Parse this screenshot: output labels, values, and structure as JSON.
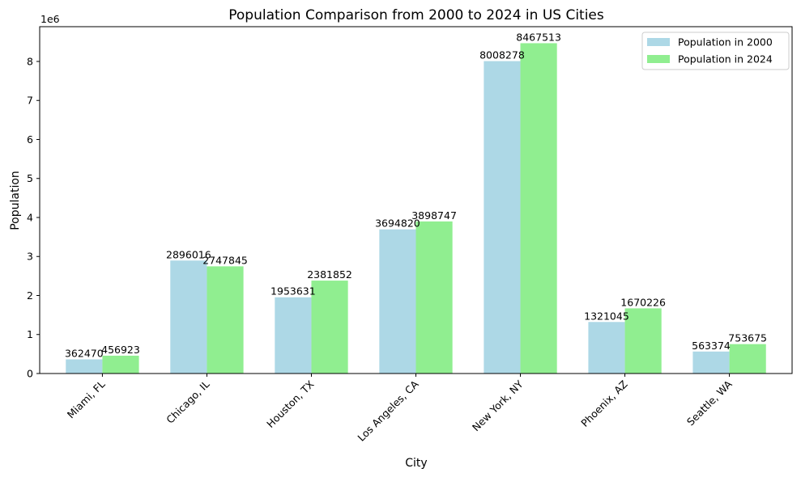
{
  "chart_data": {
    "type": "bar",
    "title": "Population Comparison from 2000 to 2024 in US Cities",
    "xlabel": "City",
    "ylabel": "Population",
    "y_offset_text": "1e6",
    "y_scale": 1000000,
    "ylim": [
      0,
      8891000
    ],
    "yticks": [
      0,
      1,
      2,
      3,
      4,
      5,
      6,
      7,
      8
    ],
    "grid": false,
    "legend_position": "top-right",
    "categories": [
      "Miami, FL",
      "Chicago, IL",
      "Houston, TX",
      "Los Angeles, CA",
      "New York, NY",
      "Phoenix, AZ",
      "Seattle, WA"
    ],
    "series": [
      {
        "name": "Population in 2000",
        "color": "#add8e6",
        "values": [
          362470,
          2896016,
          1953631,
          3694820,
          8008278,
          1321045,
          563374
        ]
      },
      {
        "name": "Population in 2024",
        "color": "#90ee90",
        "values": [
          456923,
          2747845,
          2381852,
          3898747,
          8467513,
          1670226,
          753675
        ]
      }
    ]
  }
}
